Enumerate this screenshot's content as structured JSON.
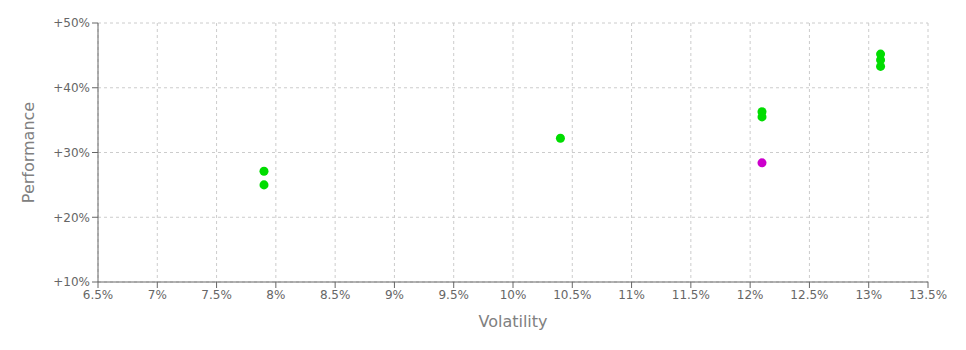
{
  "chart_data": {
    "type": "scatter",
    "xlabel": "Volatility",
    "ylabel": "Performance",
    "xlim": [
      0.065,
      0.135
    ],
    "ylim": [
      0.1,
      0.5
    ],
    "xticks": [
      {
        "value": 0.065,
        "label": "6.5%"
      },
      {
        "value": 0.07,
        "label": "7%"
      },
      {
        "value": 0.075,
        "label": "7.5%"
      },
      {
        "value": 0.08,
        "label": "8%"
      },
      {
        "value": 0.085,
        "label": "8.5%"
      },
      {
        "value": 0.09,
        "label": "9%"
      },
      {
        "value": 0.095,
        "label": "9.5%"
      },
      {
        "value": 0.1,
        "label": "10%"
      },
      {
        "value": 0.105,
        "label": "10.5%"
      },
      {
        "value": 0.11,
        "label": "11%"
      },
      {
        "value": 0.115,
        "label": "11.5%"
      },
      {
        "value": 0.12,
        "label": "12%"
      },
      {
        "value": 0.125,
        "label": "12.5%"
      },
      {
        "value": 0.13,
        "label": "13%"
      },
      {
        "value": 0.135,
        "label": "13.5%"
      }
    ],
    "yticks": [
      {
        "value": 0.1,
        "label": "+10%"
      },
      {
        "value": 0.2,
        "label": "+20%"
      },
      {
        "value": 0.3,
        "label": "+30%"
      },
      {
        "value": 0.4,
        "label": "+40%"
      },
      {
        "value": 0.5,
        "label": "+50%"
      }
    ],
    "grid": true,
    "series": [
      {
        "color": "#00dd00",
        "x": [
          0.079,
          0.079,
          0.104,
          0.121,
          0.121,
          0.131,
          0.131,
          0.131
        ],
        "values": [
          0.271,
          0.25,
          0.322,
          0.363,
          0.355,
          0.452,
          0.443,
          0.433
        ]
      },
      {
        "color": "#cc00cc",
        "x": [
          0.121
        ],
        "values": [
          0.284
        ]
      }
    ]
  }
}
